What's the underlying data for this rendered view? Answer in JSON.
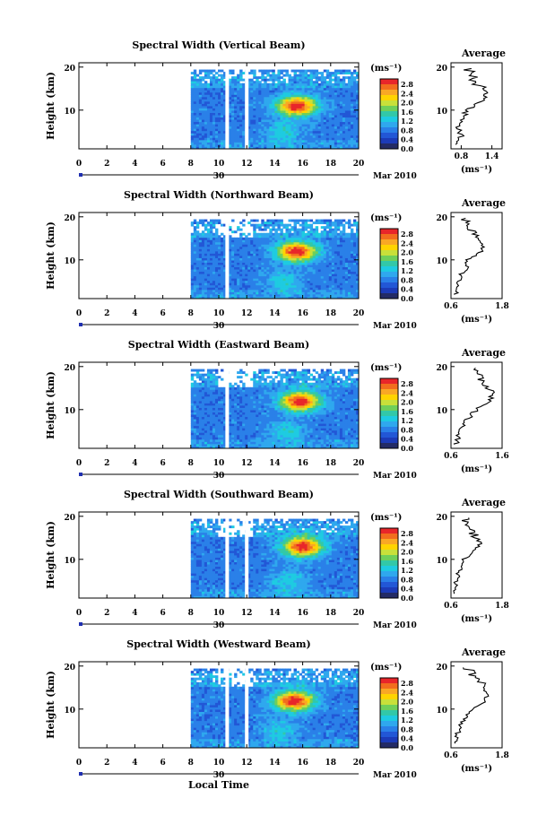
{
  "footer": {
    "xlabel": "Local Time"
  },
  "colorbar": {
    "unit_label": "(ms⁻¹)",
    "tick_labels": [
      "2.8",
      "2.4",
      "2.0",
      "1.6",
      "1.2",
      "0.8",
      "0.4",
      "0.0"
    ],
    "colors": [
      "#e8262a",
      "#f26d1e",
      "#f9a825",
      "#ffd400",
      "#c8e03a",
      "#6fcf5a",
      "#32c8a8",
      "#1ecbe1",
      "#2fa8ee",
      "#2a80e8",
      "#2257d6",
      "#1c3bb8",
      "#232b66"
    ]
  },
  "chart_data": [
    {
      "type": "heatmap",
      "title": "Spectral Width (Vertical Beam)",
      "ylabel": "Height (km)",
      "x_ticks": [
        "0",
        "2",
        "4",
        "6",
        "8",
        "10",
        "12",
        "14",
        "16",
        "18",
        "20"
      ],
      "y_ticks": [
        "20",
        "10"
      ],
      "xlim": [
        0,
        20
      ],
      "ylim": [
        1,
        21
      ],
      "date_label": "Mar 2010",
      "date_marker": "30",
      "data_start_hour": 8,
      "gaps_hours": [
        10.6,
        12.0
      ],
      "hotspot": {
        "hour": 15.6,
        "height_km": 11
      },
      "average": {
        "title": "Average",
        "xlabel": "(ms⁻¹)",
        "x_ticks": [
          "0.8",
          "1.4"
        ],
        "xlim": [
          0.6,
          1.6
        ],
        "y_ticks": [
          "20",
          "10"
        ],
        "height_km": [
          2,
          4,
          6,
          8,
          10,
          12,
          14,
          16,
          18,
          20
        ],
        "values": [
          0.75,
          0.8,
          0.75,
          0.85,
          0.9,
          1.2,
          1.3,
          1.1,
          1.0,
          0.95
        ]
      }
    },
    {
      "type": "heatmap",
      "title": "Spectral Width (Northward Beam)",
      "ylabel": "Height (km)",
      "x_ticks": [
        "0",
        "2",
        "4",
        "6",
        "8",
        "10",
        "12",
        "14",
        "16",
        "18",
        "20"
      ],
      "y_ticks": [
        "20",
        "10"
      ],
      "xlim": [
        0,
        20
      ],
      "ylim": [
        1,
        21
      ],
      "date_label": "Mar 2010",
      "date_marker": "30",
      "data_start_hour": 8,
      "gaps_hours": [
        10.6
      ],
      "hotspot": {
        "hour": 15.6,
        "height_km": 12
      },
      "average": {
        "title": "Average",
        "xlabel": "(ms⁻¹)",
        "x_ticks": [
          "0.6",
          "1.8"
        ],
        "xlim": [
          0.6,
          1.8
        ],
        "y_ticks": [
          "20",
          "10"
        ],
        "height_km": [
          2,
          4,
          6,
          8,
          10,
          12,
          14,
          16,
          18,
          20
        ],
        "values": [
          0.7,
          0.75,
          0.8,
          0.95,
          1.0,
          1.3,
          1.35,
          1.2,
          1.0,
          0.9
        ]
      }
    },
    {
      "type": "heatmap",
      "title": "Spectral Width (Eastward Beam)",
      "ylabel": "Height (km)",
      "x_ticks": [
        "0",
        "2",
        "4",
        "6",
        "8",
        "10",
        "12",
        "14",
        "16",
        "18",
        "20"
      ],
      "y_ticks": [
        "20",
        "10"
      ],
      "xlim": [
        0,
        20
      ],
      "ylim": [
        1,
        21
      ],
      "date_label": "Mar 2010",
      "date_marker": "30",
      "data_start_hour": 8,
      "gaps_hours": [
        10.6
      ],
      "hotspot": {
        "hour": 15.8,
        "height_km": 12
      },
      "average": {
        "title": "Average",
        "xlabel": "(ms⁻¹)",
        "x_ticks": [
          "0.6",
          "1.6"
        ],
        "xlim": [
          0.6,
          1.6
        ],
        "y_ticks": [
          "20",
          "10"
        ],
        "height_km": [
          2,
          4,
          6,
          8,
          10,
          12,
          14,
          16,
          18,
          20
        ],
        "values": [
          0.7,
          0.75,
          0.8,
          0.95,
          1.1,
          1.35,
          1.4,
          1.25,
          1.1,
          1.2
        ]
      }
    },
    {
      "type": "heatmap",
      "title": "Spectral Width (Southward Beam)",
      "ylabel": "Height (km)",
      "x_ticks": [
        "0",
        "2",
        "4",
        "6",
        "8",
        "10",
        "12",
        "14",
        "16",
        "18",
        "20"
      ],
      "y_ticks": [
        "20",
        "10"
      ],
      "xlim": [
        0,
        20
      ],
      "ylim": [
        1,
        21
      ],
      "date_label": "Mar 2010",
      "date_marker": "30",
      "data_start_hour": 8,
      "gaps_hours": [
        10.6,
        12.0
      ],
      "hotspot": {
        "hour": 16.0,
        "height_km": 13
      },
      "average": {
        "title": "Average",
        "xlabel": "(ms⁻¹)",
        "x_ticks": [
          "0.6",
          "1.8"
        ],
        "xlim": [
          0.6,
          1.8
        ],
        "y_ticks": [
          "20",
          "10"
        ],
        "height_km": [
          2,
          4,
          6,
          8,
          10,
          12,
          14,
          16,
          18,
          20
        ],
        "values": [
          0.7,
          0.72,
          0.75,
          0.85,
          0.9,
          1.15,
          1.3,
          1.1,
          0.95,
          0.9
        ]
      }
    },
    {
      "type": "heatmap",
      "title": "Spectral Width (Westward Beam)",
      "ylabel": "Height (km)",
      "x_ticks": [
        "0",
        "2",
        "4",
        "6",
        "8",
        "10",
        "12",
        "14",
        "16",
        "18",
        "20"
      ],
      "y_ticks": [
        "20",
        "10"
      ],
      "xlim": [
        0,
        20
      ],
      "ylim": [
        1,
        21
      ],
      "date_label": "Mar 2010",
      "date_marker": "30",
      "data_start_hour": 8,
      "gaps_hours": [
        10.6,
        12.0
      ],
      "hotspot": {
        "hour": 15.4,
        "height_km": 12
      },
      "average": {
        "title": "Average",
        "xlabel": "(ms⁻¹)",
        "x_ticks": [
          "0.6",
          "1.8"
        ],
        "xlim": [
          0.6,
          1.8
        ],
        "y_ticks": [
          "20",
          "10"
        ],
        "height_km": [
          2,
          4,
          6,
          8,
          10,
          12,
          14,
          16,
          18,
          20
        ],
        "values": [
          0.7,
          0.75,
          0.8,
          0.95,
          1.1,
          1.4,
          1.45,
          1.3,
          1.1,
          0.95
        ]
      }
    }
  ]
}
